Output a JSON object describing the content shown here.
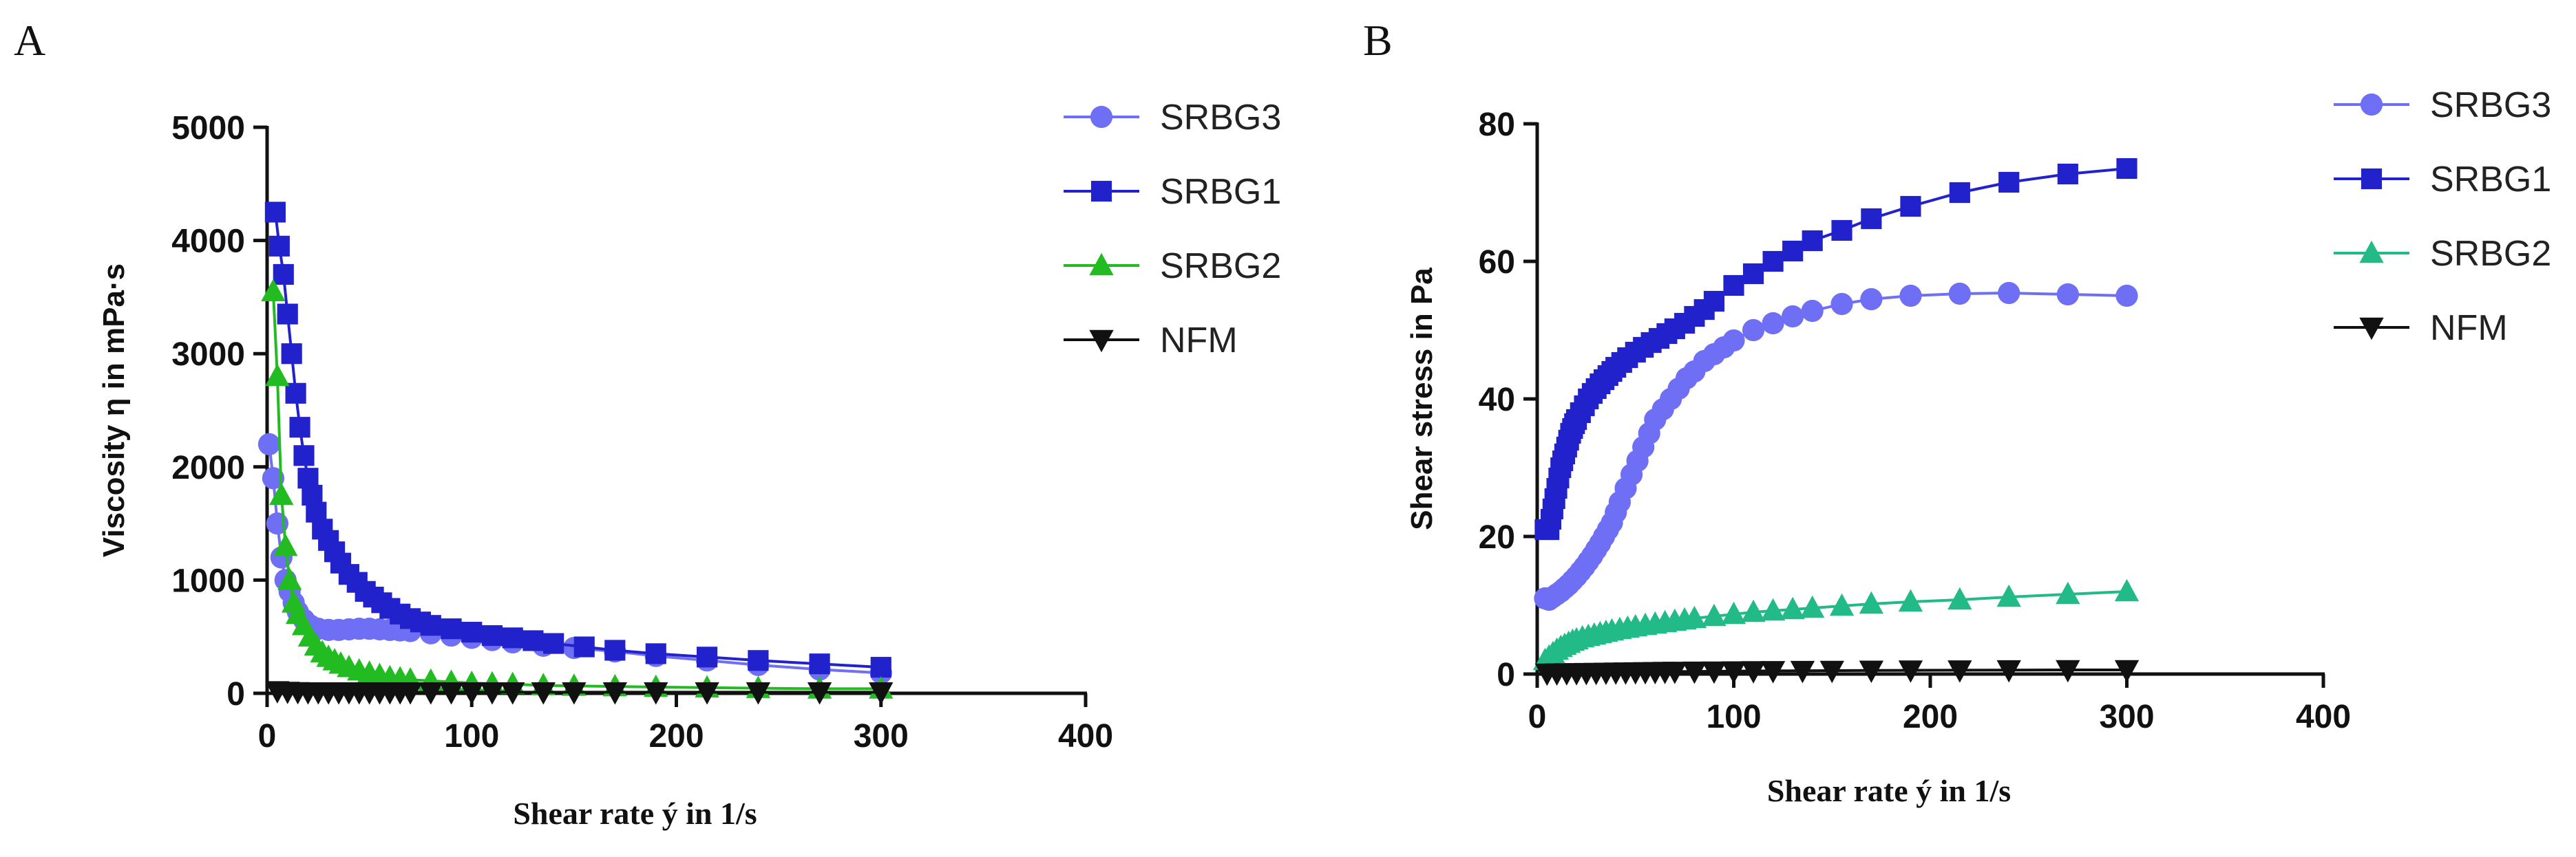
{
  "figure": {
    "panel_labels": [
      "A",
      "B"
    ]
  },
  "chart_data": [
    {
      "type": "line",
      "panel": "A",
      "title": "",
      "xlabel": "Shear rate ý in 1/s",
      "ylabel": "Viscosity  η in mPa·s",
      "xlim": [
        0,
        400
      ],
      "ylim": [
        0,
        5000
      ],
      "xticks": [
        0,
        100,
        200,
        300,
        400
      ],
      "yticks": [
        0,
        1000,
        2000,
        3000,
        4000,
        5000
      ],
      "legend_position": "top-right",
      "series": [
        {
          "name": "SRBG3",
          "color": "#6f6ff5",
          "marker": "circle",
          "x": [
            1,
            3,
            5,
            7,
            9,
            11,
            13,
            15,
            18,
            21,
            25,
            30,
            35,
            40,
            45,
            50,
            55,
            60,
            65,
            70,
            80,
            90,
            100,
            110,
            120,
            135,
            150,
            170,
            190,
            215,
            240,
            270,
            300
          ],
          "y": [
            2200,
            1900,
            1500,
            1200,
            1000,
            900,
            800,
            720,
            650,
            600,
            570,
            560,
            560,
            565,
            570,
            570,
            565,
            560,
            555,
            550,
            530,
            510,
            490,
            470,
            450,
            420,
            400,
            370,
            330,
            290,
            250,
            210,
            180
          ]
        },
        {
          "name": "SRBG1",
          "color": "#2222cc",
          "marker": "square",
          "x": [
            4,
            6,
            8,
            10,
            12,
            14,
            16,
            18,
            20,
            22,
            24,
            27,
            30,
            33,
            36,
            40,
            44,
            48,
            52,
            56,
            60,
            65,
            70,
            75,
            80,
            90,
            100,
            110,
            120,
            130,
            140,
            155,
            170,
            190,
            215,
            240,
            270,
            300
          ],
          "y": [
            4250,
            3950,
            3700,
            3350,
            3000,
            2650,
            2350,
            2100,
            1900,
            1750,
            1600,
            1450,
            1350,
            1250,
            1150,
            1050,
            980,
            900,
            850,
            800,
            750,
            700,
            660,
            630,
            600,
            570,
            540,
            510,
            490,
            465,
            440,
            410,
            380,
            350,
            320,
            290,
            260,
            230
          ]
        },
        {
          "name": "SRBG2",
          "color": "#22bb22",
          "marker": "triangle-up",
          "x": [
            3,
            5,
            7,
            9,
            11,
            13,
            15,
            18,
            21,
            24,
            27,
            30,
            33,
            36,
            40,
            45,
            50,
            55,
            60,
            65,
            70,
            80,
            90,
            100,
            110,
            120,
            135,
            150,
            170,
            190,
            215,
            240,
            270,
            300
          ],
          "y": [
            3550,
            2800,
            1750,
            1300,
            1000,
            800,
            700,
            600,
            500,
            420,
            360,
            320,
            290,
            260,
            230,
            200,
            180,
            160,
            140,
            130,
            120,
            110,
            100,
            90,
            85,
            80,
            70,
            65,
            60,
            55,
            50,
            45,
            40,
            40
          ]
        },
        {
          "name": "NFM",
          "color": "#111111",
          "marker": "triangle-down",
          "x": [
            5,
            10,
            15,
            20,
            25,
            30,
            35,
            40,
            45,
            50,
            55,
            60,
            65,
            70,
            80,
            90,
            100,
            110,
            120,
            135,
            150,
            170,
            190,
            215,
            240,
            270,
            300
          ],
          "y": [
            20,
            15,
            12,
            10,
            10,
            10,
            10,
            10,
            10,
            10,
            10,
            10,
            10,
            10,
            10,
            10,
            10,
            10,
            10,
            10,
            10,
            10,
            10,
            10,
            10,
            10,
            10
          ]
        }
      ]
    },
    {
      "type": "line",
      "panel": "B",
      "title": "",
      "xlabel": "Shear rate ý in 1/s",
      "ylabel": "Shear stress in Pa",
      "xlim": [
        0,
        400
      ],
      "ylim": [
        0,
        80
      ],
      "xticks": [
        0,
        100,
        200,
        300,
        400
      ],
      "yticks": [
        0,
        20,
        40,
        60,
        80
      ],
      "legend_position": "top-right",
      "series": [
        {
          "name": "SRBG3",
          "color": "#6f6ff5",
          "marker": "circle",
          "x": [
            4,
            6,
            8,
            10,
            12,
            14,
            16,
            18,
            20,
            22,
            24,
            26,
            28,
            30,
            32,
            34,
            36,
            38,
            40,
            42,
            45,
            48,
            51,
            54,
            57,
            60,
            64,
            68,
            72,
            76,
            80,
            85,
            90,
            95,
            100,
            110,
            120,
            130,
            140,
            155,
            170,
            190,
            215,
            240,
            270,
            300
          ],
          "y": [
            11,
            10.8,
            11.2,
            11.6,
            12,
            12.5,
            13,
            13.6,
            14.2,
            14.9,
            15.6,
            16.4,
            17.2,
            18.1,
            19,
            20,
            21,
            22,
            23.5,
            25,
            27,
            29,
            31,
            33,
            35,
            37,
            38.5,
            40,
            41.5,
            43,
            44,
            45.5,
            46.5,
            47.5,
            48.5,
            50,
            51,
            52,
            52.8,
            53.8,
            54.5,
            55,
            55.3,
            55.4,
            55.2,
            55
          ]
        },
        {
          "name": "SRBG1",
          "color": "#2222cc",
          "marker": "square",
          "x": [
            4,
            6,
            7,
            8,
            9,
            10,
            11,
            12,
            13,
            14,
            15,
            16,
            17,
            18,
            19,
            20,
            22,
            24,
            26,
            28,
            30,
            32,
            34,
            36,
            38,
            40,
            43,
            46,
            50,
            54,
            58,
            62,
            66,
            70,
            75,
            80,
            85,
            90,
            100,
            110,
            120,
            130,
            140,
            155,
            170,
            190,
            215,
            240,
            270,
            300
          ],
          "y": [
            21,
            21,
            22.5,
            24,
            25.5,
            27,
            28.5,
            30,
            31,
            32,
            33,
            34,
            35,
            35.7,
            36.4,
            37,
            38,
            39,
            40,
            40.8,
            41.5,
            42.2,
            42.8,
            43.4,
            44,
            44.6,
            45.3,
            46,
            46.8,
            47.5,
            48.2,
            48.8,
            49.5,
            50.2,
            51,
            52,
            53,
            54.2,
            56.5,
            58.2,
            60,
            61.5,
            63,
            64.5,
            66.2,
            68,
            70,
            71.5,
            72.7,
            73.5
          ]
        },
        {
          "name": "SRBG2",
          "color": "#22bb88",
          "marker": "triangle-up",
          "x": [
            4,
            6,
            8,
            10,
            12,
            14,
            16,
            18,
            20,
            23,
            26,
            29,
            32,
            35,
            38,
            42,
            46,
            50,
            55,
            60,
            65,
            70,
            75,
            80,
            90,
            100,
            110,
            120,
            130,
            140,
            155,
            170,
            190,
            215,
            240,
            270,
            300
          ],
          "y": [
            2,
            2.5,
            3,
            3.5,
            3.9,
            4.2,
            4.5,
            4.8,
            5,
            5.3,
            5.5,
            5.7,
            5.9,
            6.1,
            6.3,
            6.5,
            6.7,
            6.9,
            7.1,
            7.3,
            7.5,
            7.7,
            7.9,
            8.1,
            8.4,
            8.7,
            9,
            9.2,
            9.4,
            9.6,
            9.9,
            10.2,
            10.5,
            10.8,
            11.2,
            11.6,
            12
          ]
        },
        {
          "name": "NFM",
          "color": "#111111",
          "marker": "triangle-down",
          "x": [
            5,
            10,
            15,
            20,
            25,
            30,
            35,
            40,
            45,
            50,
            55,
            60,
            65,
            70,
            80,
            90,
            100,
            110,
            120,
            135,
            150,
            170,
            190,
            215,
            240,
            270,
            300
          ],
          "y": [
            0.1,
            0.12,
            0.14,
            0.16,
            0.18,
            0.2,
            0.22,
            0.24,
            0.26,
            0.28,
            0.3,
            0.32,
            0.34,
            0.36,
            0.38,
            0.4,
            0.42,
            0.44,
            0.46,
            0.48,
            0.5,
            0.52,
            0.54,
            0.56,
            0.58,
            0.6,
            0.6
          ]
        }
      ]
    }
  ]
}
